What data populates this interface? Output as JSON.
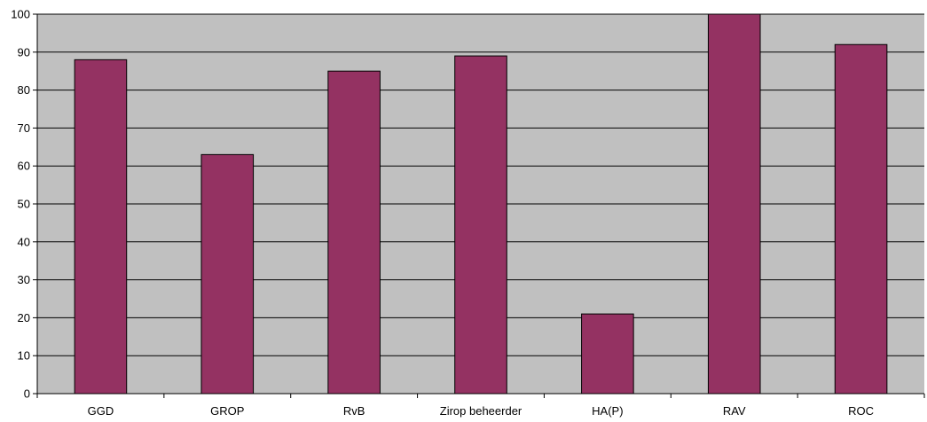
{
  "chart_data": {
    "type": "bar",
    "title": "",
    "xlabel": "",
    "ylabel": "",
    "categories": [
      "GGD",
      "GROP",
      "RvB",
      "Zirop beheerder",
      "HA(P)",
      "RAV",
      "ROC"
    ],
    "values": [
      88,
      63,
      85,
      89,
      21,
      100,
      92
    ],
    "ylim": [
      0,
      100
    ],
    "yticks": [
      "0",
      "10",
      "20",
      "30",
      "40",
      "50",
      "60",
      "70",
      "80",
      "90",
      "100"
    ],
    "grid": true,
    "legend": "none",
    "colors": {
      "bar": "#943262",
      "bar_stroke": "#000000",
      "plot_background": "#c0c0c0",
      "gridline": "#000000"
    }
  }
}
